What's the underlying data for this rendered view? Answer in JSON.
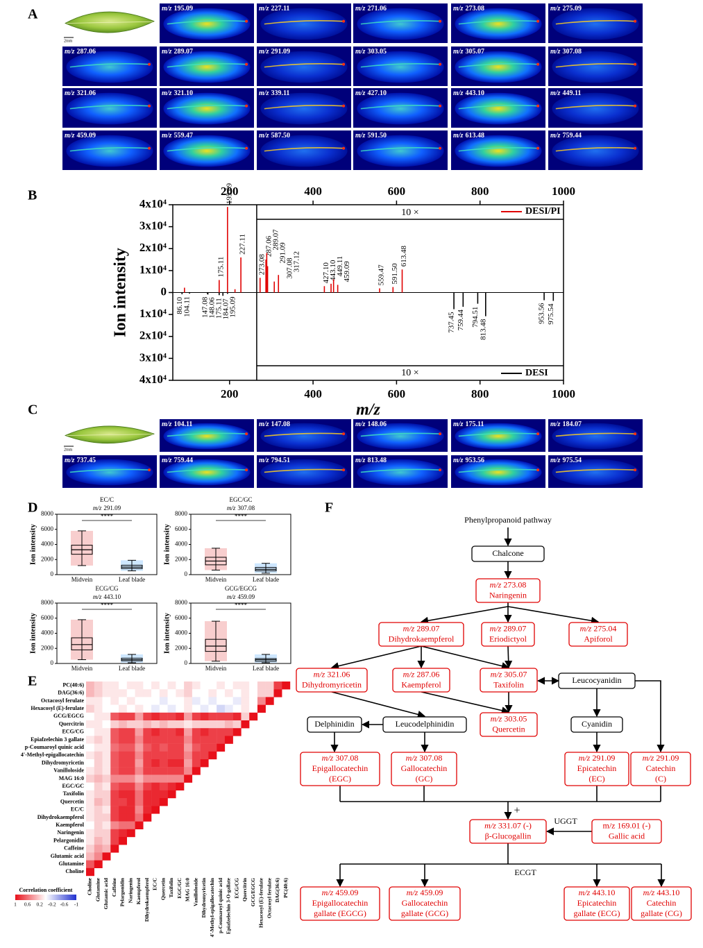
{
  "mz_prefix": "m/z",
  "panel_a": {
    "label": "A",
    "scale_bar": "2mm",
    "ion_images": [
      "195.09",
      "227.11",
      "271.06",
      "273.08",
      "275.09",
      "287.06",
      "289.07",
      "291.09",
      "303.05",
      "305.07",
      "307.08",
      "321.06",
      "321.10",
      "339.11",
      "427.10",
      "443.10",
      "449.11",
      "459.09",
      "559.47",
      "587.50",
      "591.50",
      "613.48",
      "759.44"
    ]
  },
  "panel_c": {
    "label": "C",
    "scale_bar": "2mm",
    "ion_images": [
      "104.11",
      "147.08",
      "148.06",
      "175.11",
      "184.07",
      "737.45",
      "759.44",
      "794.51",
      "813.48",
      "953.56",
      "975.54"
    ]
  },
  "chart_data": [
    {
      "type": "spectrum",
      "panel_label": "B",
      "x_label": "m/z",
      "y_label": "Ion intensity",
      "xlim": [
        64,
        1000
      ],
      "xticks": [
        200,
        400,
        600,
        800,
        1000
      ],
      "ylim": [
        -40000,
        40000
      ],
      "yticks": [
        {
          "value": 40000,
          "label": "4x10⁴"
        },
        {
          "value": 30000,
          "label": "3x10⁴"
        },
        {
          "value": 20000,
          "label": "2x10⁴"
        },
        {
          "value": 10000,
          "label": "1x10⁴"
        },
        0,
        {
          "value": -10000,
          "label": "1x10⁴"
        },
        {
          "value": -20000,
          "label": "2x10⁴"
        },
        {
          "value": -30000,
          "label": "3x10⁴"
        },
        {
          "value": -40000,
          "label": "4x10⁴"
        }
      ],
      "zoom": {
        "from": 265,
        "factor": 10,
        "label": "10 ×"
      },
      "legend": "right",
      "series": [
        {
          "name": "DESI/PI",
          "color": "#e00000",
          "x": [
            92,
            175.11,
            195.09,
            213,
            227.11,
            273.08,
            287.06,
            289.07,
            291.09,
            307.08,
            317.12,
            427.1,
            443.1,
            449.11,
            459.09,
            559.47,
            591.5,
            613.48
          ],
          "values": [
            2200,
            5700,
            39000,
            1500,
            16000,
            670,
            1500,
            1800,
            1200,
            500,
            800,
            290,
            400,
            600,
            350,
            190,
            250,
            1050
          ],
          "x_labels": [
            null,
            "175.11",
            "195.09",
            null,
            "227.11",
            "273.08",
            "287.06",
            "289.07",
            "291.09",
            "307.08",
            "317.12",
            "427.10",
            "443.10",
            "449.11",
            "459.09",
            "559.47",
            "591.50",
            "613.48"
          ]
        },
        {
          "name": "DESI",
          "color": "#000000",
          "x": [
            86.1,
            104.11,
            147.08,
            148.06,
            175.11,
            184.07,
            195.09,
            737.45,
            759.44,
            794.51,
            813.48,
            953.56,
            975.54
          ],
          "values": [
            -800,
            -500,
            -700,
            -900,
            -1200,
            -1500,
            -600,
            -760,
            -650,
            -510,
            -1080,
            -350,
            -380
          ],
          "x_labels": [
            "86.10",
            "104.11",
            "147.08",
            "148.06",
            "175.11",
            "184.07",
            "195.09",
            "737.45",
            "759.44",
            "794.51",
            "813.48",
            "953.56",
            "975.54"
          ]
        }
      ]
    },
    {
      "type": "box",
      "panel_label": "D",
      "title": "EC/C",
      "mz": "291.09",
      "annotation": "****",
      "y_label": "Ion intensity",
      "categories": [
        "Midvein",
        "Leaf blade"
      ],
      "colors": [
        "#e02020",
        "#1e90ff"
      ],
      "ylim": [
        0,
        8000
      ],
      "yticks": [
        0,
        2000,
        4000,
        6000,
        8000
      ],
      "boxes": [
        {
          "low": 1200,
          "q1": 2700,
          "median": 3300,
          "q3": 3900,
          "high": 5800
        },
        {
          "low": 500,
          "q1": 800,
          "median": 1000,
          "q3": 1250,
          "high": 1900
        }
      ]
    },
    {
      "type": "box",
      "title": "EGC/GC",
      "mz": "307.08",
      "annotation": "****",
      "y_label": "Ion intensity",
      "categories": [
        "Midvein",
        "Leaf blade"
      ],
      "colors": [
        "#e02020",
        "#1e90ff"
      ],
      "ylim": [
        0,
        8000
      ],
      "yticks": [
        0,
        2000,
        4000,
        6000,
        8000
      ],
      "boxes": [
        {
          "low": 600,
          "q1": 1300,
          "median": 1800,
          "q3": 2300,
          "high": 3500
        },
        {
          "low": 200,
          "q1": 500,
          "median": 700,
          "q3": 950,
          "high": 1500
        }
      ]
    },
    {
      "type": "box",
      "title": "ECG/CG",
      "mz": "443.10",
      "annotation": "****",
      "y_label": "Ion intensity",
      "categories": [
        "Midvein",
        "Leaf blade"
      ],
      "colors": [
        "#e02020",
        "#1e90ff"
      ],
      "ylim": [
        0,
        8000
      ],
      "yticks": [
        0,
        2000,
        4000,
        6000,
        8000
      ],
      "boxes": [
        {
          "low": 500,
          "q1": 1800,
          "median": 2500,
          "q3": 3400,
          "high": 5800
        },
        {
          "low": 100,
          "q1": 350,
          "median": 500,
          "q3": 700,
          "high": 1200
        }
      ]
    },
    {
      "type": "box",
      "title": "GCG/EGCG",
      "mz": "459.09",
      "annotation": "****",
      "y_label": "Ion intensity",
      "categories": [
        "Midvein",
        "Leaf blade"
      ],
      "colors": [
        "#e02020",
        "#1e90ff"
      ],
      "ylim": [
        0,
        8000
      ],
      "yticks": [
        0,
        2000,
        4000,
        6000,
        8000
      ],
      "boxes": [
        {
          "low": 300,
          "q1": 1600,
          "median": 2300,
          "q3": 3200,
          "high": 5600
        },
        {
          "low": 100,
          "q1": 300,
          "median": 500,
          "q3": 650,
          "high": 1200
        }
      ]
    },
    {
      "type": "heatmap",
      "panel_label": "E",
      "y_categories": [
        "PC(40:6)",
        "DAG(36:6)",
        "Octacosyl ferulate",
        "Hexacosyl (E)-ferulate",
        "GCG/EGCG",
        "Quercitrin",
        "ECG/CG",
        "Epiafzelechin 3 gallate",
        "p-Coumaroyl quinic acid",
        "4'-Methyl-epigallocatechin",
        "Dihydromyricetin",
        "Vanilloloside",
        "MAG 16:0",
        "EGC/GC",
        "Taxifolin",
        "Quercetin",
        "EC/C",
        "Dihydrokaempferol",
        "Kaempferol",
        "Naringenin",
        "Pelargonidin",
        "Caffeine",
        "Glutamic acid",
        "Glutamine",
        "Choline"
      ],
      "x_categories": [
        "Choline",
        "Glutamine",
        "Glutamic acid",
        "Caffeine",
        "Pelargonidin",
        "Naringenin",
        "Kaempferol",
        "Dihydrokaempferol",
        "EC/C",
        "Quercetin",
        "Taxifolin",
        "EGC/GC",
        "MAG 16:0",
        "Vanilloloside",
        "Dihydromyricetin",
        "4'-Methyl-epigallocatechin",
        "p-Coumaroyl quinic acid",
        "Epiafzelechin 3-O-gallate",
        "ECG/CG",
        "Quercitrin",
        "GCG/EGCG",
        "Hexacosyl (E)-ferulate",
        "Octacosyl ferulate",
        "DAG(36:6)",
        "PC(40:6)"
      ],
      "values": [
        [
          0.3,
          0.2,
          0.1,
          0.1,
          0.0,
          0.1,
          0.1,
          0.0,
          0.1,
          0.0,
          0.1,
          0.0,
          0.2,
          0.1,
          0.0,
          0.0,
          0.1,
          0.0,
          0.1,
          0.1,
          0.0,
          0.2,
          0.2,
          0.8,
          1
        ],
        [
          0.3,
          0.2,
          0.1,
          0.1,
          0.1,
          0.0,
          0.1,
          0.1,
          0.0,
          0.1,
          0.0,
          0.1,
          0.2,
          0.0,
          0.0,
          0.1,
          0.0,
          0.1,
          0.0,
          0.1,
          0.0,
          0.2,
          0.2,
          1
        ],
        [
          0.1,
          0.1,
          0.0,
          0.1,
          0.0,
          0.1,
          0.0,
          0.0,
          0.0,
          -0.1,
          0.0,
          0.0,
          0.1,
          -0.1,
          0.0,
          -0.1,
          0.0,
          0.0,
          -0.1,
          0.1,
          0.0,
          0.5,
          1
        ],
        [
          0.2,
          0.1,
          0.0,
          0.0,
          0.1,
          0.0,
          0.1,
          0.0,
          -0.1,
          0.0,
          -0.1,
          0.0,
          0.1,
          0.0,
          -0.1,
          0.0,
          -0.2,
          -0.1,
          0.0,
          0.1,
          0.0,
          1
        ],
        [
          0.0,
          0.1,
          0.1,
          0.7,
          0.8,
          0.8,
          0.4,
          0.8,
          0.9,
          0.8,
          0.8,
          0.9,
          0.4,
          0.8,
          0.9,
          0.8,
          0.8,
          0.8,
          0.9,
          0.2,
          1
        ],
        [
          0.1,
          0.1,
          0.0,
          0.2,
          0.3,
          0.2,
          0.2,
          0.3,
          0.2,
          0.3,
          0.2,
          0.2,
          0.1,
          0.2,
          0.2,
          0.2,
          0.2,
          0.3,
          0.2,
          1
        ],
        [
          0.0,
          0.1,
          0.1,
          0.7,
          0.8,
          0.8,
          0.4,
          0.8,
          0.9,
          0.8,
          0.8,
          0.9,
          0.4,
          0.8,
          0.9,
          0.8,
          0.8,
          0.8,
          1
        ],
        [
          0.1,
          0.2,
          0.1,
          0.7,
          0.8,
          0.8,
          0.5,
          0.8,
          0.8,
          0.8,
          0.8,
          0.8,
          0.5,
          0.8,
          0.8,
          0.8,
          0.8,
          1
        ],
        [
          0.0,
          0.1,
          0.1,
          0.6,
          0.7,
          0.7,
          0.4,
          0.7,
          0.8,
          0.7,
          0.8,
          0.8,
          0.4,
          0.7,
          0.8,
          0.8,
          1
        ],
        [
          0.1,
          0.2,
          0.1,
          0.7,
          0.8,
          0.8,
          0.5,
          0.8,
          0.8,
          0.8,
          0.8,
          0.8,
          0.5,
          0.8,
          0.8,
          1
        ],
        [
          0.0,
          0.2,
          0.1,
          0.7,
          0.8,
          0.8,
          0.4,
          0.8,
          0.9,
          0.8,
          0.9,
          0.9,
          0.4,
          0.8,
          1
        ],
        [
          0.1,
          0.2,
          0.1,
          0.7,
          0.8,
          0.8,
          0.5,
          0.8,
          0.8,
          0.8,
          0.8,
          0.8,
          0.5,
          1
        ],
        [
          0.2,
          0.3,
          0.2,
          0.5,
          0.5,
          0.5,
          0.3,
          0.5,
          0.5,
          0.5,
          0.5,
          0.5,
          1
        ],
        [
          0.0,
          0.2,
          0.1,
          0.7,
          0.8,
          0.8,
          0.5,
          0.8,
          0.9,
          0.8,
          0.9,
          1
        ],
        [
          0.1,
          0.2,
          0.2,
          0.8,
          0.9,
          0.9,
          0.6,
          0.9,
          0.9,
          0.9,
          1
        ],
        [
          0.1,
          0.3,
          0.2,
          0.8,
          0.8,
          0.9,
          0.6,
          0.9,
          0.9,
          1
        ],
        [
          0.1,
          0.2,
          0.1,
          0.8,
          0.9,
          0.9,
          0.5,
          0.9,
          1
        ],
        [
          0.1,
          0.2,
          0.2,
          0.8,
          0.9,
          0.9,
          0.6,
          1
        ],
        [
          0.0,
          0.2,
          0.1,
          0.5,
          0.6,
          0.6,
          1
        ],
        [
          0.1,
          0.2,
          0.2,
          0.8,
          0.9,
          1
        ],
        [
          0.1,
          0.3,
          0.2,
          0.8,
          1
        ],
        [
          0.2,
          0.4,
          0.3,
          1
        ],
        [
          0.3,
          0.5,
          1
        ],
        [
          0.7,
          1
        ],
        [
          1
        ]
      ],
      "colors": {
        "positive": "#e8101a",
        "negative": "#2030d0"
      },
      "colorbar": {
        "title": "Correlation coefficient",
        "ticks": [
          1,
          0.6,
          0.2,
          -0.2,
          -0.6,
          -1
        ]
      }
    }
  ],
  "panel_f": {
    "label": "F",
    "title": "Phenylpropanoid pathway",
    "nodes": [
      {
        "color": "#000000",
        "lines": [
          "Chalcone"
        ]
      },
      {
        "color": "#e00000",
        "mz": "273.08",
        "lines": [
          "Naringenin"
        ]
      },
      {
        "color": "#e00000",
        "mz": "289.07",
        "lines": [
          "Dihydrokaempferol"
        ]
      },
      {
        "color": "#e00000",
        "mz": "289.07",
        "lines": [
          "Eriodictyol"
        ]
      },
      {
        "color": "#e00000",
        "mz": "275.04",
        "lines": [
          "Apiforol"
        ]
      },
      {
        "color": "#e00000",
        "mz": "321.06",
        "lines": [
          "Dihydromyricetin"
        ]
      },
      {
        "color": "#e00000",
        "mz": "287.06",
        "lines": [
          "Kaempferol"
        ]
      },
      {
        "color": "#e00000",
        "mz": "305.07",
        "lines": [
          "Taxifolin"
        ]
      },
      {
        "color": "#000000",
        "lines": [
          "Leucocyanidin"
        ]
      },
      {
        "color": "#e00000",
        "mz": "303.05",
        "lines": [
          "Quercetin"
        ]
      },
      {
        "color": "#000000",
        "lines": [
          "Delphinidin"
        ]
      },
      {
        "color": "#000000",
        "lines": [
          "Leucodelphinidin"
        ]
      },
      {
        "color": "#000000",
        "lines": [
          "Cyanidin"
        ]
      },
      {
        "color": "#e00000",
        "mz": "307.08",
        "lines": [
          "Epigallocatechin",
          "(EGC)"
        ]
      },
      {
        "color": "#e00000",
        "mz": "307.08",
        "lines": [
          "Gallocatechin",
          "(GC)"
        ]
      },
      {
        "color": "#e00000",
        "mz": "291.09",
        "lines": [
          "Epicatechin",
          "(EC)"
        ]
      },
      {
        "color": "#e00000",
        "mz": "291.09",
        "lines": [
          "Catechin",
          "(C)"
        ]
      },
      {
        "color": "#e00000",
        "mz": "331.07 (-)",
        "lines": [
          "β-Glucogallin"
        ]
      },
      {
        "color": "#e00000",
        "lines": [
          "m/z 169.01 (-)",
          "Gallic acid"
        ]
      },
      {
        "color": "#e00000",
        "mz": "459.09",
        "lines": [
          "Epigallocatechin",
          "gallate (EGCG)"
        ]
      },
      {
        "color": "#e00000",
        "mz": "459.09",
        "lines": [
          "Gallocatechin",
          "gallate (GCG)"
        ]
      },
      {
        "color": "#e00000",
        "mz": "443.10",
        "lines": [
          "Epicatechin",
          "gallate (ECG)"
        ]
      },
      {
        "color": "#e00000",
        "mz": "443.10",
        "lines": [
          "Catechin",
          "gallate (CG)"
        ]
      }
    ],
    "annotations": [
      "+",
      "UGGT",
      "ECGT"
    ]
  }
}
